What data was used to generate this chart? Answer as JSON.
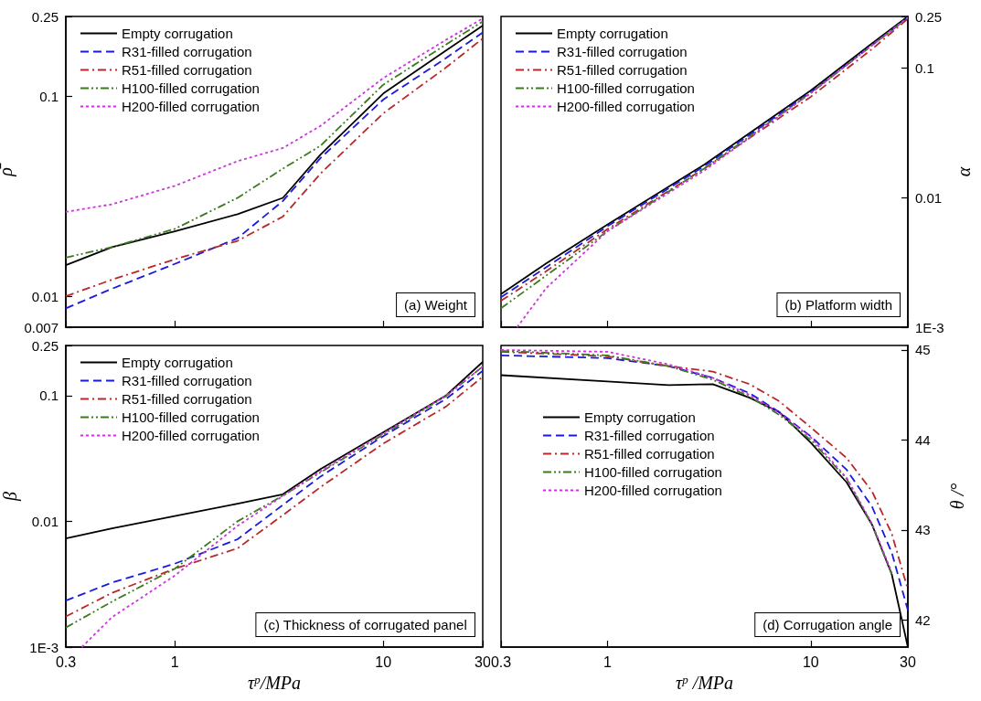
{
  "chart_data": [
    {
      "type": "line",
      "ylabel": "ρ̄",
      "log": "xy",
      "tick_labels": "y",
      "legend": "top left",
      "annotations": [
        "(a) Weight"
      ],
      "xlim": [
        0.3,
        30
      ],
      "xticks": [
        0.3,
        1,
        10,
        30
      ],
      "ylim": [
        0.007,
        0.25
      ],
      "yticks": [
        0.007,
        0.01,
        0.1,
        0.25
      ],
      "x": [
        0.3,
        0.5,
        1,
        2,
        3.3,
        5,
        10,
        20,
        30
      ],
      "series": [
        {
          "name": "Empty corrugation",
          "color": "#000000",
          "line_style": "solid",
          "values": [
            0.0143,
            0.0176,
            0.0211,
            0.0257,
            0.031,
            0.051,
            0.103,
            0.169,
            0.225
          ]
        },
        {
          "name": "R31-filled corrugation",
          "color": "#1a1adc",
          "line_style": "dashed",
          "values": [
            0.0087,
            0.0109,
            0.0145,
            0.0195,
            0.0299,
            0.049,
            0.096,
            0.155,
            0.208
          ]
        },
        {
          "name": "R51-filled corrugation",
          "color": "#b8282a",
          "line_style": "dashdot",
          "values": [
            0.01,
            0.0121,
            0.0153,
            0.0189,
            0.025,
            0.041,
            0.082,
            0.139,
            0.194
          ]
        },
        {
          "name": "H100-filled corrugation",
          "color": "#3c7a20",
          "line_style": "dashdotdot",
          "values": [
            0.0156,
            0.0176,
            0.0217,
            0.031,
            0.0434,
            0.0565,
            0.114,
            0.181,
            0.236
          ]
        },
        {
          "name": "H200-filled corrugation",
          "color": "#cc33dd",
          "line_style": "dotted",
          "values": [
            0.0264,
            0.0288,
            0.0356,
            0.0473,
            0.055,
            0.071,
            0.123,
            0.191,
            0.244
          ]
        }
      ]
    },
    {
      "type": "line",
      "ylabel": "α",
      "log": "xy",
      "tick_labels": "y",
      "legend": "top left",
      "annotations": [
        "(b) Platform width"
      ],
      "xlim": [
        0.3,
        30
      ],
      "xticks": [
        0.3,
        1,
        10,
        30
      ],
      "ylim": [
        0.001,
        0.25
      ],
      "yticks": [
        {
          "value": 0.001,
          "label": "1E-3"
        },
        0.01,
        0.1,
        0.25
      ],
      "x": [
        0.3,
        0.5,
        1,
        3,
        10,
        20,
        30
      ],
      "series": [
        {
          "name": "Empty corrugation",
          "color": "#000000",
          "line_style": "solid",
          "values": [
            0.0018,
            0.0031,
            0.0062,
            0.018,
            0.067,
            0.155,
            0.25
          ]
        },
        {
          "name": "R31-filled corrugation",
          "color": "#1a1adc",
          "line_style": "dashed",
          "values": [
            0.0017,
            0.0029,
            0.006,
            0.0175,
            0.065,
            0.15,
            0.245
          ]
        },
        {
          "name": "R51-filled corrugation",
          "color": "#b8282a",
          "line_style": "dashdot",
          "values": [
            0.0016,
            0.0027,
            0.0057,
            0.0168,
            0.06,
            0.14,
            0.24
          ]
        },
        {
          "name": "H100-filled corrugation",
          "color": "#3c7a20",
          "line_style": "dashdotdot",
          "values": [
            0.0014,
            0.0025,
            0.0055,
            0.0168,
            0.064,
            0.15,
            0.245
          ]
        },
        {
          "name": "H200-filled corrugation",
          "color": "#cc33dd",
          "line_style": "dotted",
          "x": [
            0.36,
            0.5,
            1,
            3,
            10,
            20,
            30
          ],
          "values": [
            0.001,
            0.002,
            0.0055,
            0.0162,
            0.064,
            0.15,
            0.245
          ]
        }
      ]
    },
    {
      "type": "line",
      "xlabel": "τ$^{p}$/MPa",
      "ylabel": "β",
      "log": "xy",
      "legend": "top left",
      "annotations": [
        "(c) Thickness of corrugated panel"
      ],
      "xlim": [
        0.3,
        30
      ],
      "xticks": [
        0.3,
        1,
        10,
        30
      ],
      "ylim": [
        0.001,
        0.25
      ],
      "yticks": [
        {
          "value": 0.001,
          "label": "1E-3"
        },
        0.01,
        0.1,
        0.25
      ],
      "x": [
        0.3,
        0.5,
        1,
        2,
        3.3,
        5,
        10,
        20,
        30
      ],
      "series": [
        {
          "name": "Empty corrugation",
          "color": "#000000",
          "line_style": "solid",
          "values": [
            0.0073,
            0.0088,
            0.011,
            0.0138,
            0.0164,
            0.026,
            0.051,
            0.1,
            0.185
          ]
        },
        {
          "name": "R31-filled corrugation",
          "color": "#1a1adc",
          "line_style": "dashed",
          "values": [
            0.00234,
            0.00326,
            0.0046,
            0.0072,
            0.0135,
            0.0227,
            0.0475,
            0.094,
            0.157
          ]
        },
        {
          "name": "R51-filled corrugation",
          "color": "#b8282a",
          "line_style": "dashdot",
          "values": [
            0.00175,
            0.0027,
            0.0042,
            0.0061,
            0.0112,
            0.0187,
            0.0415,
            0.0817,
            0.141
          ]
        },
        {
          "name": "H100-filled corrugation",
          "color": "#3c7a20",
          "line_style": "dashdotdot",
          "values": [
            0.00143,
            0.0023,
            0.0042,
            0.01,
            0.016,
            0.0245,
            0.049,
            0.0989,
            0.17
          ]
        },
        {
          "name": "H200-filled corrugation",
          "color": "#cc33dd",
          "line_style": "dotted",
          "x": [
            0.358,
            0.5,
            1,
            2,
            3.3,
            5,
            10,
            20,
            30
          ],
          "values": [
            0.001,
            0.00173,
            0.0037,
            0.0092,
            0.0159,
            0.025,
            0.05,
            0.1,
            0.17
          ]
        }
      ]
    },
    {
      "type": "line",
      "xlabel": "τ$^{p}$ /MPa",
      "y2label": "θ /°",
      "log": "x",
      "legend": "left",
      "annotations": [
        "(d) Corrugation angle"
      ],
      "xlim": [
        0.3,
        30
      ],
      "xticks": [
        0.3,
        1,
        10,
        30
      ],
      "y2lim": [
        41.7,
        45.05
      ],
      "y2ticks": [
        42,
        43,
        44,
        45
      ],
      "x": [
        0.3,
        1,
        2,
        3.3,
        5,
        7,
        10,
        15,
        20,
        25,
        30
      ],
      "series": [
        {
          "name": "Empty corrugation",
          "color": "#000000",
          "line_style": "solid",
          "axis": "y2",
          "values": [
            44.72,
            44.65,
            44.61,
            44.62,
            44.47,
            44.31,
            43.97,
            43.53,
            43.06,
            42.51,
            41.7
          ]
        },
        {
          "name": "R31-filled corrugation",
          "color": "#1a1adc",
          "line_style": "dashed",
          "axis": "y2",
          "values": [
            44.94,
            44.91,
            44.82,
            44.69,
            44.52,
            44.31,
            44.04,
            43.67,
            43.26,
            42.75,
            42.11
          ]
        },
        {
          "name": "R51-filled corrugation",
          "color": "#b8282a",
          "line_style": "dashdot",
          "axis": "y2",
          "values": [
            44.98,
            44.93,
            44.82,
            44.76,
            44.62,
            44.43,
            44.14,
            43.8,
            43.43,
            42.96,
            42.34
          ]
        },
        {
          "name": "H100-filled corrugation",
          "color": "#3c7a20",
          "line_style": "dashdotdot",
          "axis": "y2",
          "values": [
            44.99,
            44.94,
            44.82,
            44.67,
            44.48,
            44.28,
            44.0,
            43.57,
            43.06,
            42.51,
            null
          ]
        },
        {
          "name": "H200-filled corrugation",
          "color": "#cc33dd",
          "line_style": "dotted",
          "axis": "y2",
          "values": [
            45.0,
            44.98,
            44.84,
            44.69,
            44.5,
            44.3,
            44.03,
            43.58,
            43.07,
            42.53,
            null
          ]
        }
      ]
    }
  ]
}
